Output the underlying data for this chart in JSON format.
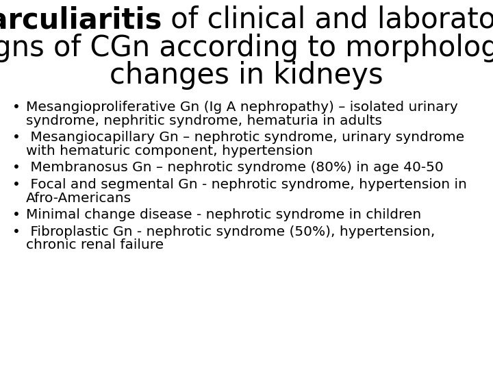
{
  "background_color": "#ffffff",
  "text_color": "#000000",
  "title_line1_bold": "Parculiaritis",
  "title_line1_normal": " of clinical and laboratory",
  "title_line2": "signs of CGn according to morphologic",
  "title_line3": "changes in kidneys",
  "title_fontsize": 30,
  "bullet_fontsize": 14.5,
  "bullet_dot": "•",
  "bullets": [
    [
      "Mesangioproliferative Gn (Ig A nephropathy) – isolated urinary",
      "syndrome, nephritic syndrome, hematuria in adults"
    ],
    [
      " Mesangiocapillary Gn – nephrotic syndrome, urinary syndrome",
      "with hematuric component, hypertension"
    ],
    [
      " Membranosus Gn – nephrotic syndrome (80%) in age 40-50"
    ],
    [
      " Focal and segmental Gn - nephrotic syndrome, hypertension in",
      "Afro-Americans"
    ],
    [
      "Minimal change disease - nephrotic syndrome in children"
    ],
    [
      " Fibroplastic Gn - nephrotic syndrome (50%), hypertension,",
      "chronic renal failure"
    ]
  ],
  "font_family": "DejaVu Sans",
  "fig_width": 7.2,
  "fig_height": 5.4,
  "dpi": 100
}
